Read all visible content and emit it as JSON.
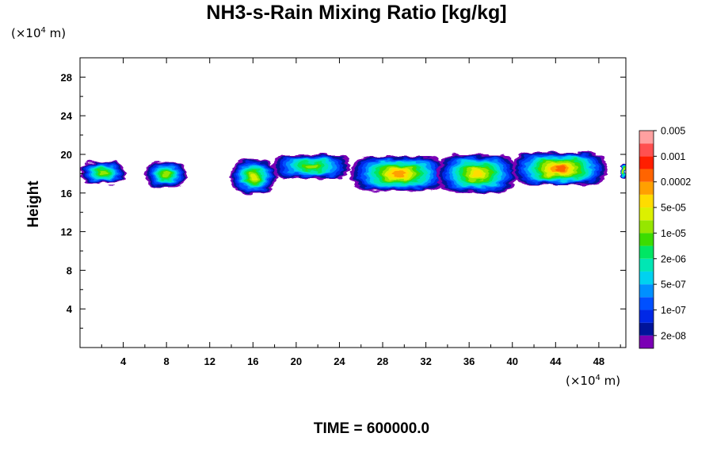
{
  "chart_data": {
    "type": "heatmap",
    "title": "NH3-s-Rain Mixing Ratio [kg/kg]",
    "ylabel": "Height",
    "x_unit": {
      "prefix": "(×10",
      "exp": "4",
      "suffix": " m)"
    },
    "y_unit": {
      "prefix": "(×10",
      "exp": "4",
      "suffix": " m)"
    },
    "xlim": [
      0,
      50.5
    ],
    "ylim": [
      0,
      30
    ],
    "x_ticks": [
      4,
      8,
      12,
      16,
      20,
      24,
      28,
      32,
      36,
      40,
      44,
      48
    ],
    "y_ticks": [
      4,
      8,
      12,
      16,
      20,
      24,
      28
    ],
    "footer": "TIME = 600000.0",
    "colorbar": {
      "colors": [
        "#7a00b4",
        "#00149a",
        "#0028e6",
        "#0050ff",
        "#0090ff",
        "#00d2f0",
        "#00e6b4",
        "#00e664",
        "#3cdc00",
        "#96e600",
        "#dcf000",
        "#ffdc00",
        "#ffa000",
        "#ff6400",
        "#ff1e00",
        "#ff5050",
        "#ffa0a0"
      ],
      "labels": [
        "2e-08",
        "1e-07",
        "5e-07",
        "2e-06",
        "1e-05",
        "5e-05",
        "0.0002",
        "0.001",
        "0.005"
      ]
    },
    "cloud_regions": [
      {
        "x0": 0.0,
        "x1": 4.2,
        "y0": 17.0,
        "y1": 19.2,
        "peak_level": 9
      },
      {
        "x0": 6.0,
        "x1": 9.9,
        "y0": 16.6,
        "y1": 19.2,
        "peak_level": 9
      },
      {
        "x0": 13.9,
        "x1": 18.2,
        "y0": 15.9,
        "y1": 19.5,
        "peak_level": 10
      },
      {
        "x0": 17.8,
        "x1": 25.0,
        "y0": 17.5,
        "y1": 20.0,
        "peak_level": 9
      },
      {
        "x0": 25.0,
        "x1": 34.0,
        "y0": 16.2,
        "y1": 19.8,
        "peak_level": 12
      },
      {
        "x0": 33.0,
        "x1": 40.5,
        "y0": 16.0,
        "y1": 20.0,
        "peak_level": 11
      },
      {
        "x0": 40.0,
        "x1": 48.8,
        "y0": 16.8,
        "y1": 20.2,
        "peak_level": 13
      },
      {
        "x0": 50.0,
        "x1": 50.5,
        "y0": 17.5,
        "y1": 19.0,
        "peak_level": 11
      }
    ]
  }
}
